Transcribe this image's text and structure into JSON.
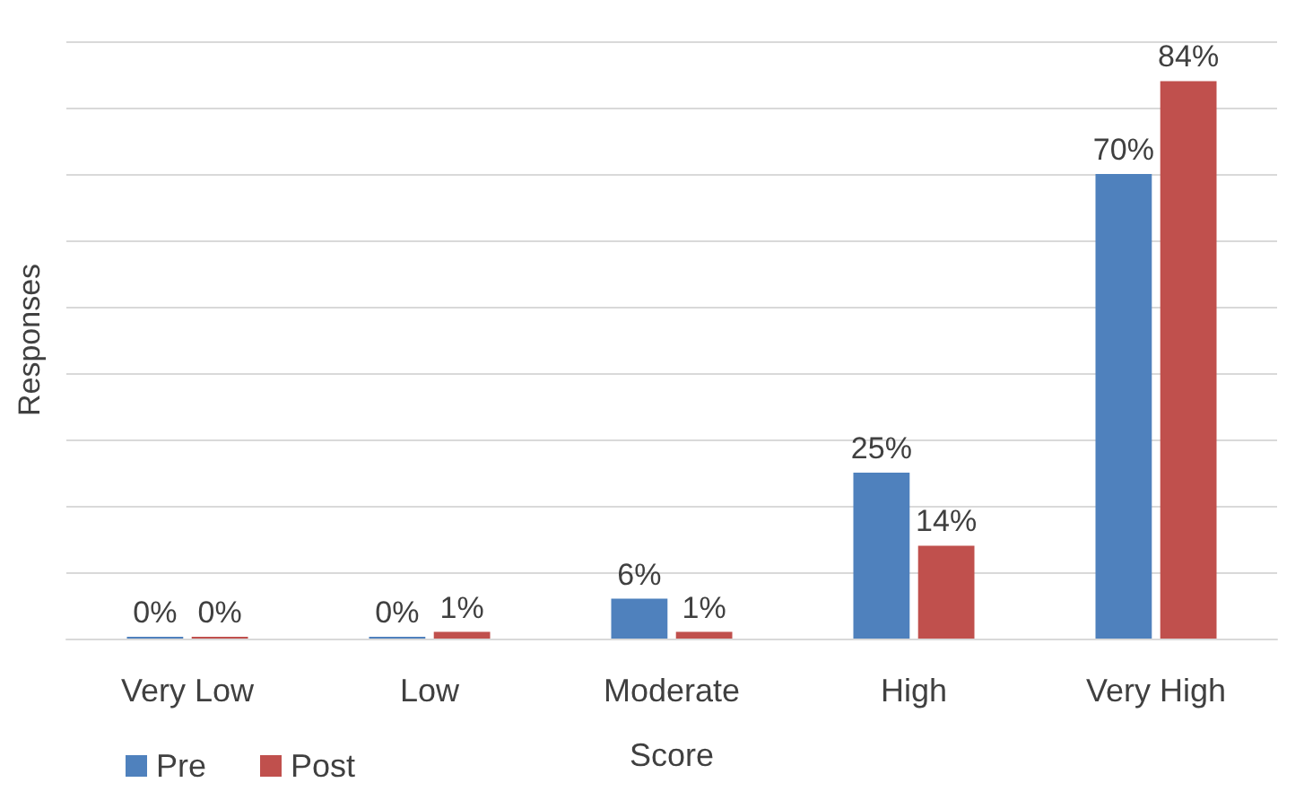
{
  "chart_data": {
    "type": "bar",
    "xlabel": "Score",
    "ylabel": "Responses",
    "categories": [
      "Very Low",
      "Low",
      "Moderate",
      "High",
      "Very High"
    ],
    "series": [
      {
        "name": "Pre",
        "color": "#4f81bd",
        "values": [
          0,
          0,
          6,
          25,
          70
        ],
        "value_labels": [
          "0%",
          "0%",
          "6%",
          "25%",
          "70%"
        ]
      },
      {
        "name": "Post",
        "color": "#c0504d",
        "values": [
          0,
          1,
          1,
          14,
          84
        ],
        "value_labels": [
          "0%",
          "1%",
          "1%",
          "14%",
          "84%"
        ]
      }
    ],
    "ylim": [
      0,
      90
    ],
    "yticks": [
      {
        "value": 0,
        "label": null
      },
      {
        "value": 10,
        "label": null
      },
      {
        "value": 20,
        "label": null
      },
      {
        "value": 30,
        "label": null
      },
      {
        "value": 40,
        "label": null
      },
      {
        "value": 50,
        "label": null
      },
      {
        "value": 60,
        "label": null
      },
      {
        "value": 70,
        "label": null
      },
      {
        "value": 80,
        "label": null
      },
      {
        "value": 90,
        "label": null
      }
    ],
    "tick_labels": "x",
    "grid": "y",
    "legend": "bottom left"
  }
}
